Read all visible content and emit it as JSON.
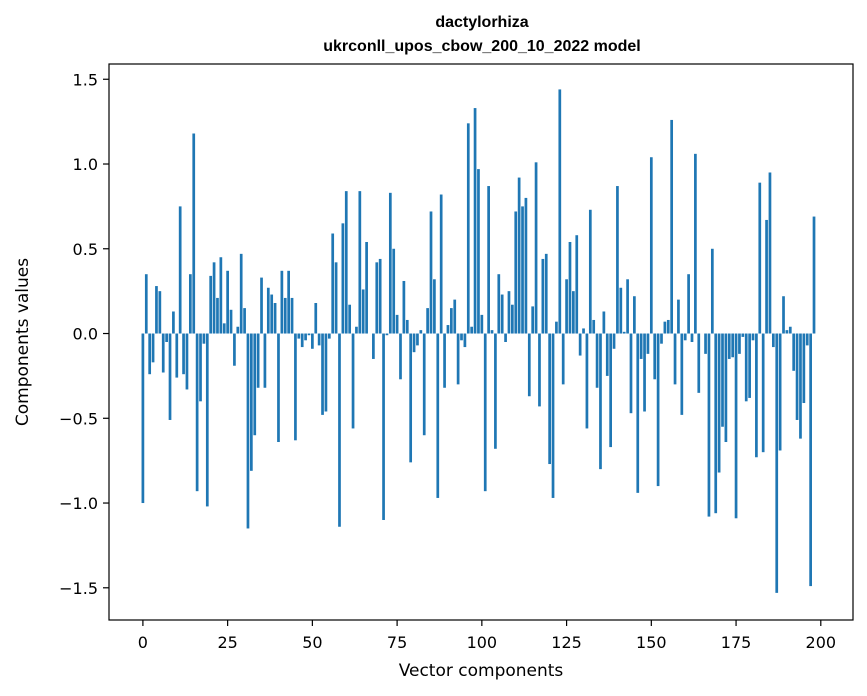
{
  "chart_data": {
    "type": "bar",
    "title_line1": "dactylorhiza",
    "title_line2": "ukrconll_upos_cbow_200_10_2022 model",
    "xlabel": "Vector components",
    "ylabel": "Components values",
    "xlim": [
      -10,
      209.5
    ],
    "ylim": [
      -1.69,
      1.59
    ],
    "xticks": [
      0,
      25,
      50,
      75,
      100,
      125,
      150,
      175,
      200
    ],
    "yticks": [
      -1.5,
      -1.0,
      -0.5,
      0.0,
      0.5,
      1.0,
      1.5
    ],
    "ytick_labels": [
      "−1.5",
      "−1.0",
      "−0.5",
      "0.0",
      "0.5",
      "1.0",
      "1.5"
    ],
    "grid": false,
    "bar_color": "#1f77b4",
    "values": [
      -1.0,
      0.35,
      -0.24,
      -0.17,
      0.28,
      0.25,
      -0.23,
      -0.05,
      -0.51,
      0.13,
      -0.26,
      0.75,
      -0.24,
      -0.33,
      0.35,
      1.18,
      -0.93,
      -0.4,
      -0.06,
      -1.02,
      0.34,
      0.42,
      0.21,
      0.45,
      0.06,
      0.37,
      0.14,
      -0.19,
      0.04,
      0.47,
      0.15,
      -1.15,
      -0.81,
      -0.6,
      -0.32,
      0.33,
      -0.32,
      0.27,
      0.23,
      0.18,
      -0.64,
      0.37,
      0.21,
      0.37,
      0.21,
      -0.63,
      -0.03,
      -0.08,
      -0.04,
      -0.01,
      -0.09,
      0.18,
      -0.07,
      -0.48,
      -0.46,
      -0.03,
      0.59,
      0.42,
      -1.14,
      0.65,
      0.84,
      0.17,
      -0.56,
      0.04,
      0.84,
      0.26,
      0.54,
      0.0,
      -0.15,
      0.42,
      0.44,
      -1.1,
      -0.01,
      0.83,
      0.5,
      0.11,
      -0.27,
      0.31,
      0.08,
      -0.76,
      -0.11,
      -0.07,
      0.02,
      -0.6,
      0.15,
      0.72,
      0.32,
      -0.97,
      0.82,
      -0.32,
      0.05,
      0.15,
      0.2,
      -0.3,
      -0.04,
      -0.08,
      1.24,
      0.04,
      1.33,
      0.97,
      0.11,
      -0.93,
      0.87,
      0.02,
      -0.68,
      0.35,
      0.23,
      -0.05,
      0.25,
      0.17,
      0.72,
      0.92,
      0.75,
      0.8,
      -0.37,
      0.16,
      1.01,
      -0.43,
      0.44,
      0.47,
      -0.77,
      -0.97,
      0.07,
      1.44,
      -0.3,
      0.32,
      0.54,
      0.25,
      0.58,
      -0.13,
      0.03,
      -0.56,
      0.73,
      0.08,
      -0.32,
      -0.8,
      0.13,
      -0.25,
      -0.67,
      -0.09,
      0.87,
      0.27,
      0.01,
      0.32,
      -0.47,
      0.22,
      -0.94,
      -0.15,
      -0.46,
      -0.12,
      1.04,
      -0.27,
      -0.9,
      -0.06,
      0.07,
      0.08,
      1.26,
      -0.3,
      0.2,
      -0.48,
      -0.04,
      0.35,
      -0.05,
      1.06,
      -0.35,
      0.0,
      -0.12,
      -1.08,
      0.5,
      -1.06,
      -0.82,
      -0.55,
      -0.64,
      -0.15,
      -0.14,
      -1.09,
      -0.12,
      -0.02,
      -0.4,
      -0.38,
      -0.04,
      -0.73,
      0.89,
      -0.7,
      0.67,
      0.95,
      -0.08,
      -1.53,
      -0.69,
      0.22,
      0.02,
      0.04,
      -0.22,
      -0.51,
      -0.62,
      -0.41,
      -0.07,
      -1.49,
      0.69
    ]
  }
}
